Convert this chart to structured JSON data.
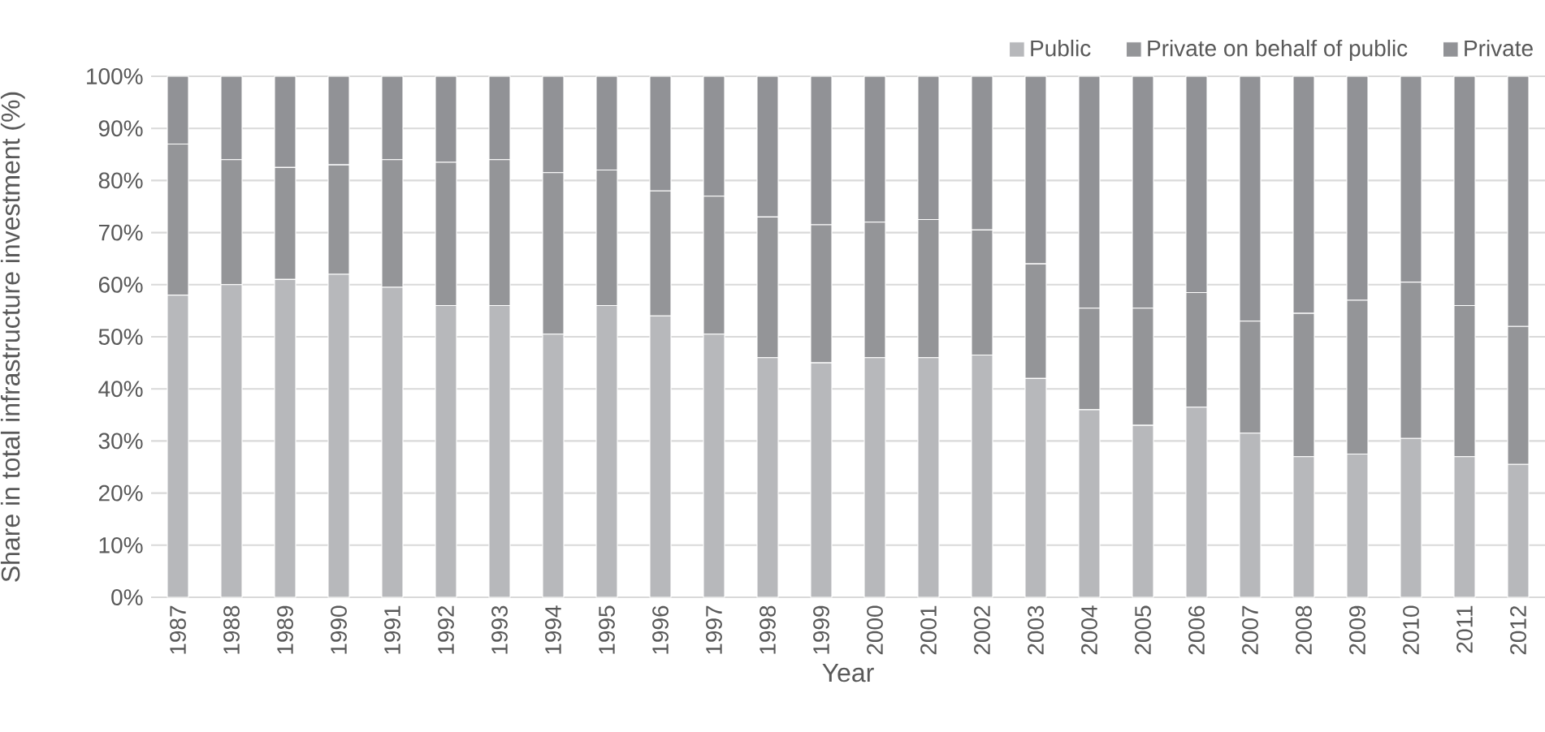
{
  "chart_data": {
    "type": "bar",
    "stacked": true,
    "xlabel": "Year",
    "ylabel": "Share in total infrastructure investment (%)",
    "categories": [
      "1987",
      "1988",
      "1989",
      "1990",
      "1991",
      "1992",
      "1993",
      "1994",
      "1995",
      "1996",
      "1997",
      "1998",
      "1999",
      "2000",
      "2001",
      "2002",
      "2003",
      "2004",
      "2005",
      "2006",
      "2007",
      "2008",
      "2009",
      "2010",
      "2011",
      "2012"
    ],
    "series": [
      {
        "name": "Public",
        "color": "#b7b8bb",
        "values": [
          58,
          60,
          61,
          62,
          59.5,
          56,
          56,
          50.5,
          56,
          54,
          50.5,
          46,
          45,
          46,
          46,
          46.5,
          42,
          36,
          33,
          36.5,
          31.5,
          27,
          27.5,
          30.5,
          27,
          25.5
        ]
      },
      {
        "name": "Private on behalf of public",
        "color": "#949598",
        "values": [
          29,
          24,
          21.5,
          21,
          24.5,
          27.5,
          28,
          31,
          26,
          24,
          26.5,
          27,
          26.5,
          26,
          26.5,
          24,
          22,
          19.5,
          22.5,
          22,
          21.5,
          27.5,
          29.5,
          30,
          29,
          26.5
        ]
      },
      {
        "name": "Private",
        "color": "#919296",
        "values": [
          13,
          16,
          17.5,
          17,
          16,
          16.5,
          16,
          18.5,
          18,
          22,
          23,
          27,
          28.5,
          28,
          27.5,
          29.5,
          36,
          44.5,
          44.5,
          41.5,
          47,
          45.5,
          43,
          39.5,
          44,
          48
        ]
      }
    ],
    "ylim": [
      0,
      100
    ],
    "yticks": [
      {
        "value": 0,
        "label": "0%"
      },
      {
        "value": 10,
        "label": "10%"
      },
      {
        "value": 20,
        "label": "20%"
      },
      {
        "value": 30,
        "label": "30%"
      },
      {
        "value": 40,
        "label": "40%"
      },
      {
        "value": 50,
        "label": "50%"
      },
      {
        "value": 60,
        "label": "60%"
      },
      {
        "value": 70,
        "label": "70%"
      },
      {
        "value": 80,
        "label": "80%"
      },
      {
        "value": 90,
        "label": "90%"
      },
      {
        "value": 100,
        "label": "100%"
      }
    ],
    "grid": "y",
    "legend": "top right"
  }
}
